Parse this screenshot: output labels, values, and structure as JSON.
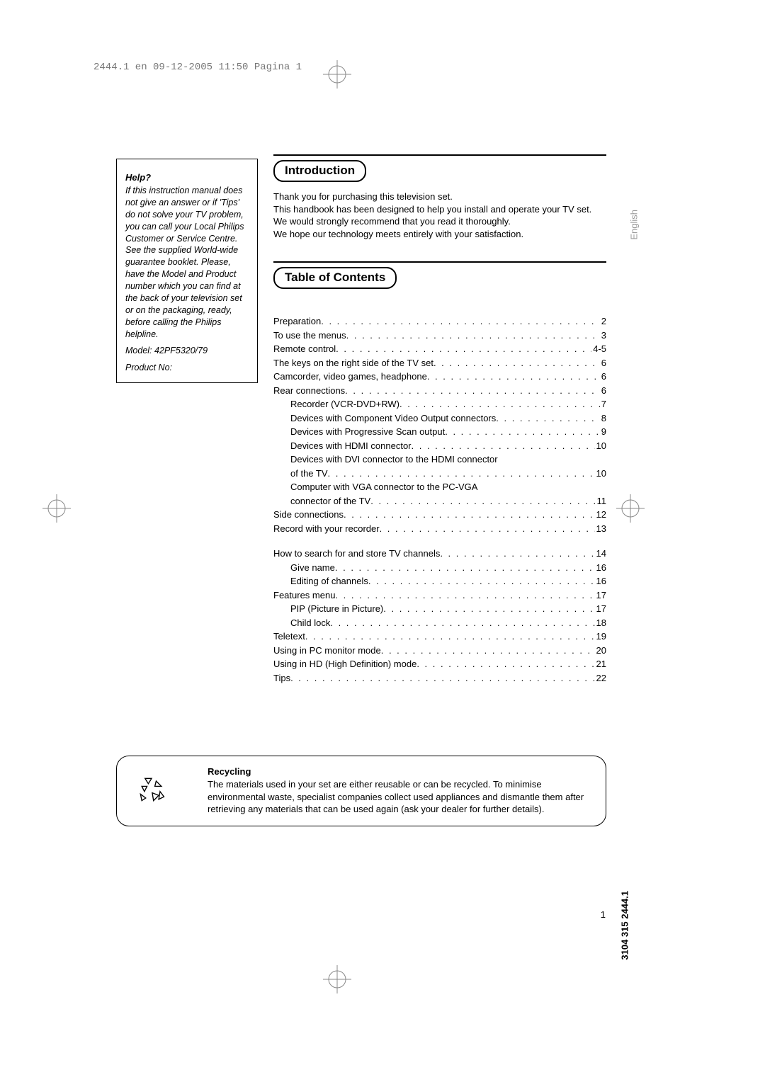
{
  "header": {
    "imprint": "2444.1 en  09-12-2005  11:50  Pagina 1"
  },
  "help": {
    "title": "Help?",
    "body": "If this instruction manual does not give an answer or if 'Tips' do not solve your TV problem, you can call your Local Philips Customer or Service Centre. See the supplied World-wide guarantee booklet.\nPlease, have the Model and Product number which you can find at the back of your television set or on the packaging, ready, before calling the Philips helpline.",
    "model_label": "Model:   42PF5320/79",
    "product_label": "Product No:"
  },
  "sections": {
    "intro_label": "Introduction",
    "toc_label": "Table of Contents"
  },
  "intro": {
    "p1": "Thank you for purchasing this television set.",
    "p2": "This handbook has been designed to help you install and operate your TV set.  We would strongly recommend that you read it thoroughly.",
    "p3": "We hope our technology meets entirely with your satisfaction."
  },
  "language_tab": "English",
  "toc": [
    {
      "label": "Preparation",
      "page": "2",
      "indent": 0
    },
    {
      "label": "To use the menus",
      "page": "3",
      "indent": 0
    },
    {
      "label": "Remote control",
      "page": "4-5",
      "indent": 0
    },
    {
      "label": "The keys on the right side of the TV set",
      "page": "6",
      "indent": 0
    },
    {
      "label": "Camcorder, video games, headphone",
      "page": "6",
      "indent": 0
    },
    {
      "label": "Rear connections",
      "page": "6",
      "indent": 0
    },
    {
      "label": "Recorder (VCR-DVD+RW)",
      "page": "7",
      "indent": 1
    },
    {
      "label": "Devices with Component Video Output connectors",
      "page": "8",
      "indent": 1
    },
    {
      "label": "Devices with Progressive Scan output",
      "page": " 9",
      "indent": 1
    },
    {
      "label": "Devices with HDMI connector",
      "page": "10",
      "indent": 1
    },
    {
      "label": "Devices with DVI connector to the HDMI connector",
      "page": "",
      "indent": 1,
      "noleader": true
    },
    {
      "label": "of the TV",
      "page": "10",
      "indent": 1
    },
    {
      "label": "Computer with VGA connector to the PC-VGA",
      "page": "",
      "indent": 1,
      "noleader": true
    },
    {
      "label": "connector of the TV",
      "page": "11",
      "indent": 1
    },
    {
      "label": "Side connections",
      "page": "12",
      "indent": 0
    },
    {
      "label": "Record with your recorder",
      "page": "13",
      "indent": 0
    },
    {
      "gap": true
    },
    {
      "label": "How to search for and store TV channels",
      "page": "14",
      "indent": 0
    },
    {
      "label": "Give name",
      "page": "16",
      "indent": 1
    },
    {
      "label": "Editing of channels",
      "page": "16",
      "indent": 1
    },
    {
      "label": "Features menu",
      "page": "17",
      "indent": 0
    },
    {
      "label": "PIP (Picture in Picture)",
      "page": "17",
      "indent": 1
    },
    {
      "label": "Child lock",
      "page": " 18",
      "indent": 1
    },
    {
      "label": "Teletext",
      "page": "19",
      "indent": 0
    },
    {
      "label": "Using in PC monitor mode",
      "page": "20",
      "indent": 0
    },
    {
      "label": "Using in HD (High Definition) mode",
      "page": "21",
      "indent": 0
    },
    {
      "label": "Tips",
      "page": "22",
      "indent": 0
    }
  ],
  "recycling": {
    "title": "Recycling",
    "body": "The materials used in your set are either reusable or can be recycled. To minimise environmental waste, specialist companies collect used appliances and dismantle them after retrieving any materials that can be used again (ask your dealer for further details)."
  },
  "footer": {
    "doc_number": "3104 315 2444.1",
    "page_number": "1"
  },
  "colors": {
    "text": "#000000",
    "bg": "#ffffff",
    "muted": "#888888"
  }
}
